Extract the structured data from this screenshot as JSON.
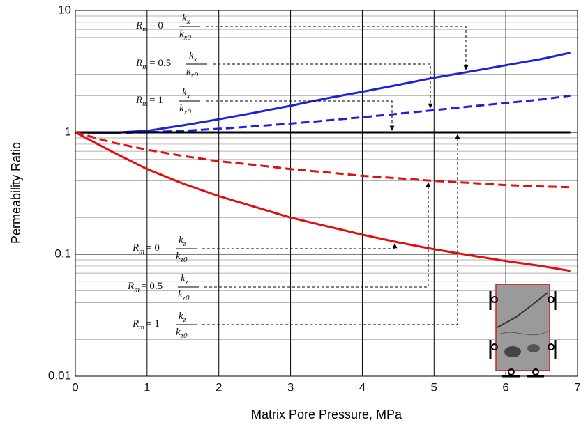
{
  "chart_data": {
    "type": "line",
    "xlabel": "Matrix Pore Pressure, MPa",
    "ylabel": "Permeability Ratio",
    "log_y": true,
    "grid": true,
    "xlim": [
      0,
      7
    ],
    "xticks": [
      0,
      1,
      2,
      3,
      4,
      5,
      6,
      7
    ],
    "ylim": [
      0.01,
      10
    ],
    "yticks": [
      0.01,
      0.1,
      1,
      10
    ],
    "x": [
      0,
      0.5,
      1,
      1.5,
      2,
      2.5,
      3,
      3.5,
      4,
      4.5,
      5,
      5.5,
      6,
      6.5,
      6.9
    ],
    "series": [
      {
        "color": "#1f1fe0",
        "dash": false,
        "values": [
          1,
          0.99,
          1.03,
          1.14,
          1.28,
          1.45,
          1.65,
          1.9,
          2.15,
          2.45,
          2.8,
          3.15,
          3.55,
          4.0,
          4.5
        ]
      },
      {
        "color": "#1f1fe0",
        "dash": true,
        "values": [
          1,
          0.99,
          1.0,
          1.03,
          1.07,
          1.12,
          1.18,
          1.25,
          1.33,
          1.42,
          1.52,
          1.63,
          1.74,
          1.86,
          2.0
        ]
      },
      {
        "color": "#000000",
        "dash": false,
        "values": [
          1,
          1,
          1,
          1,
          1,
          1,
          1,
          1,
          1,
          1,
          1,
          1,
          1,
          1,
          1
        ]
      },
      {
        "color": "#e01010",
        "dash": false,
        "values": [
          1,
          0.7,
          0.5,
          0.38,
          0.3,
          0.245,
          0.2,
          0.17,
          0.145,
          0.125,
          0.11,
          0.098,
          0.088,
          0.08,
          0.073
        ]
      },
      {
        "color": "#e01010",
        "dash": true,
        "values": [
          1,
          0.83,
          0.72,
          0.64,
          0.58,
          0.54,
          0.5,
          0.47,
          0.44,
          0.42,
          0.4,
          0.385,
          0.37,
          0.36,
          0.355
        ]
      }
    ],
    "annotations": [
      {
        "symbol": "R",
        "symbol_sub": "m",
        "relation": "= 0",
        "num": "k",
        "num_sub": "x",
        "den": "k",
        "den_sub": "x0"
      },
      {
        "symbol": "R",
        "symbol_sub": "m",
        "relation": "= 0.5",
        "num": "k",
        "num_sub": "x",
        "den": "k",
        "den_sub": "x0"
      },
      {
        "symbol": "R",
        "symbol_sub": "m",
        "relation": "= 1",
        "num": "k",
        "num_sub": "x",
        "den": "k",
        "den_sub": "x0"
      },
      {
        "symbol": "R",
        "symbol_sub": "m",
        "relation": "= 0",
        "num": "k",
        "num_sub": "z",
        "den": "k",
        "den_sub": "z0"
      },
      {
        "symbol": "R",
        "symbol_sub": "m",
        "relation": "= 0.5",
        "num": "k",
        "num_sub": "z",
        "den": "k",
        "den_sub": "z0"
      },
      {
        "symbol": "R",
        "symbol_sub": "m",
        "relation": "= 1",
        "num": "k",
        "num_sub": "z",
        "den": "k",
        "den_sub": "z0"
      }
    ]
  }
}
